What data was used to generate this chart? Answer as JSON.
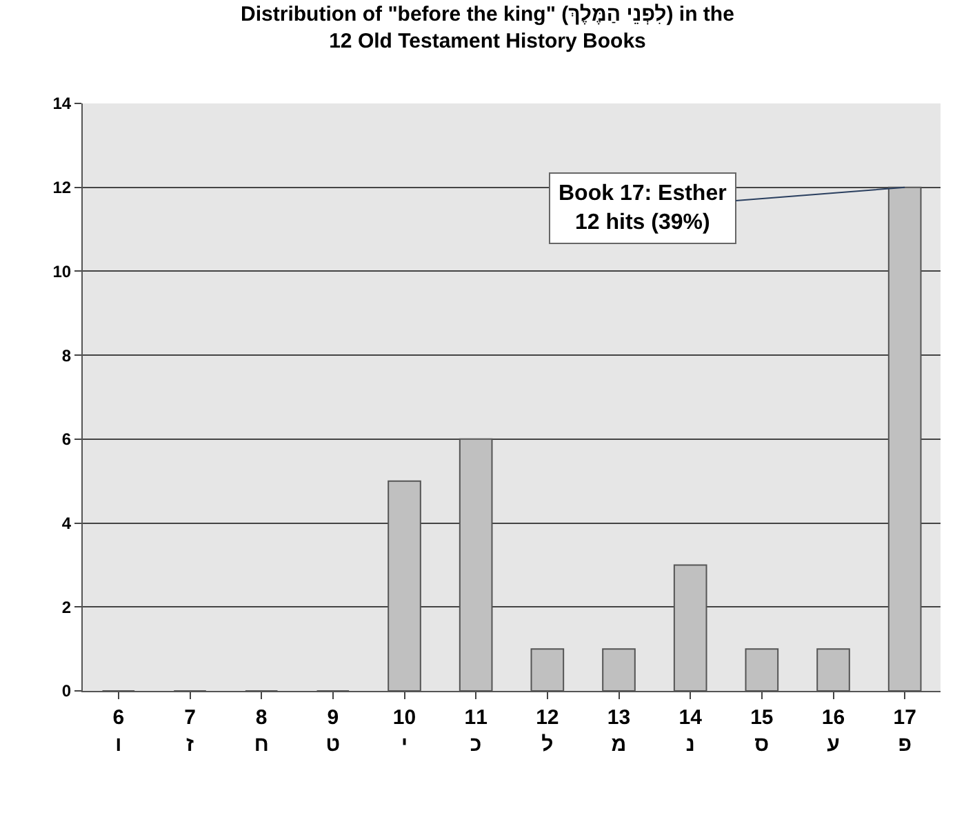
{
  "chart_data": {
    "type": "bar",
    "title": "Distribution of \"before the king\" (לִפְנֵי הַמֶּלֶךְ) in the\n12 Old Testament History Books",
    "categories": [
      "6\nו",
      "7\nז",
      "8\nח",
      "9\nט",
      "10\nי",
      "11\nכ",
      "12\nל",
      "13\nמ",
      "14\nנ",
      "15\nס",
      "16\nע",
      "17\nפ"
    ],
    "values": [
      0,
      0,
      0,
      0,
      5,
      6,
      1,
      1,
      3,
      1,
      1,
      12
    ],
    "color": "#c0c0c0",
    "ylim": [
      0,
      14
    ],
    "yticks": [
      0,
      2,
      4,
      6,
      8,
      10,
      12,
      14
    ],
    "grid": "y",
    "annotations": [
      {
        "text": "Book 17: Esther\n12 hits (39%)",
        "x": "17\nפ",
        "y": 12
      }
    ]
  }
}
